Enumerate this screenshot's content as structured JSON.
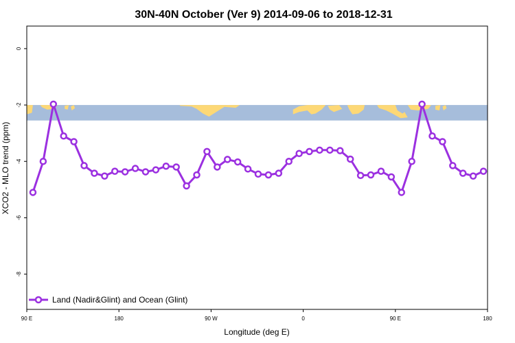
{
  "chart_data": {
    "type": "line",
    "title": "30N-40N October (Ver 9)   2014-09-06 to 2018-12-31",
    "xlabel": "Longitude (deg E)",
    "ylabel": "XCO2 - MLO trend (ppm)",
    "xlim": [
      90,
      540
    ],
    "ylim": [
      -9.25,
      0.8
    ],
    "x_ticks": [
      {
        "value": 90,
        "label": "90 E"
      },
      {
        "value": 180,
        "label": "180"
      },
      {
        "value": 270,
        "label": "90 W"
      },
      {
        "value": 360,
        "label": "0"
      },
      {
        "value": 450,
        "label": "90 E"
      },
      {
        "value": 540,
        "label": "180"
      }
    ],
    "y_ticks": [
      0,
      -2,
      -4,
      -6,
      -8
    ],
    "grid": false,
    "legend_position": "bottom-left",
    "map_strip": {
      "ymin": -2.55,
      "ymax": -2.0,
      "ocean_color": "#a6bddb",
      "land_color": "#fdd876"
    },
    "series": [
      {
        "name": "Land (Nadir&Glint) and Ocean (Glint)",
        "color": "#9b30e0",
        "x": [
          96,
          106,
          116,
          126,
          136,
          146,
          156,
          166,
          176,
          186,
          196,
          206,
          216,
          226,
          236,
          246,
          256,
          266,
          276,
          286,
          296,
          306,
          316,
          326,
          336,
          346,
          356,
          366,
          376,
          386,
          396,
          406,
          416,
          426,
          436,
          446,
          456,
          466,
          476,
          486,
          496,
          506,
          516,
          526,
          536
        ],
        "values": [
          -5.1,
          -4.0,
          -1.97,
          -3.1,
          -3.3,
          -4.15,
          -4.42,
          -4.52,
          -4.35,
          -4.37,
          -4.25,
          -4.37,
          -4.3,
          -4.17,
          -4.2,
          -4.87,
          -4.48,
          -3.65,
          -4.2,
          -3.93,
          -4.02,
          -4.27,
          -4.45,
          -4.48,
          -4.42,
          -4.0,
          -3.72,
          -3.65,
          -3.6,
          -3.6,
          -3.62,
          -3.92,
          -4.5,
          -4.48,
          -4.35,
          -4.55,
          -5.1,
          -4.0,
          -1.97,
          -3.1,
          -3.3,
          -4.15,
          -4.42,
          -4.52,
          -4.35
        ]
      }
    ]
  }
}
